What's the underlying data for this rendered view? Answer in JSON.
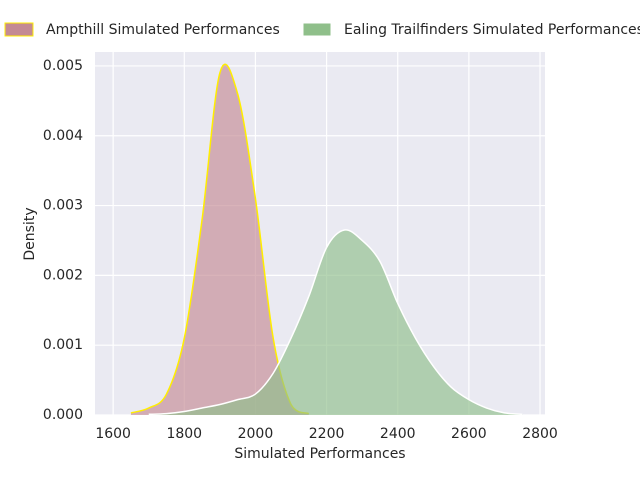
{
  "chart_data": {
    "type": "density",
    "xlabel": "Simulated Performances",
    "ylabel": "Density",
    "x": [
      1600,
      1650,
      1700,
      1750,
      1800,
      1850,
      1900,
      1950,
      2000,
      2050,
      2100,
      2150,
      2200,
      2250,
      2300,
      2350,
      2400,
      2450,
      2500,
      2550,
      2600,
      2650,
      2700,
      2750
    ],
    "series": [
      {
        "name": "Ampthill Simulated Performances",
        "color": "#c48a94",
        "edge_color": "#ffee00",
        "values": [
          null,
          3e-05,
          0.0001,
          0.0003,
          0.0011,
          0.0028,
          0.0049,
          0.0046,
          0.0031,
          0.0011,
          0.00015,
          2e-05,
          null,
          null,
          null,
          null,
          null,
          null,
          null,
          null,
          null,
          null,
          null,
          null
        ]
      },
      {
        "name": "Ealing Trailfinders Simulated Performances",
        "color": "#8fbf8a",
        "edge_color": "#ffffff",
        "values": [
          null,
          null,
          1e-05,
          2e-05,
          5e-05,
          0.0001,
          0.00015,
          0.00022,
          0.0003,
          0.0006,
          0.0011,
          0.0017,
          0.0024,
          0.00265,
          0.0025,
          0.0022,
          0.0016,
          0.0011,
          0.0007,
          0.0004,
          0.00022,
          0.0001,
          3e-05,
          1e-05
        ]
      }
    ],
    "xlim": [
      1549,
      2814
    ],
    "ylim": [
      0,
      0.0052
    ],
    "xticks": [
      1600,
      1800,
      2000,
      2200,
      2400,
      2600,
      2800
    ],
    "yticks": [
      {
        "value": 0,
        "label": "0.000"
      },
      0.001,
      0.002,
      0.003,
      0.004,
      0.005
    ],
    "grid": true,
    "legend": "top"
  }
}
